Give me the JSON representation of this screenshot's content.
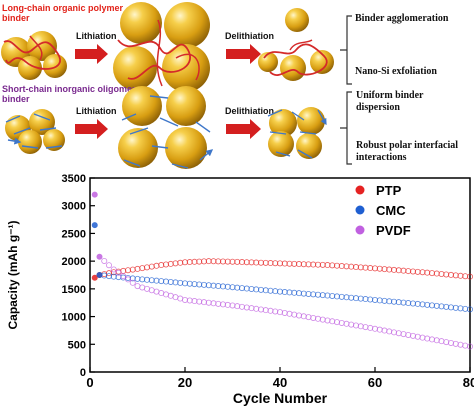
{
  "top_row": {
    "label_line1": "Long-chain organic polymer",
    "label_line2": "binder",
    "step1": "Lithiation",
    "step2": "Delithiation",
    "outcome1": "Binder agglomeration",
    "outcome2": "Nano-Si exfoliation"
  },
  "bottom_row": {
    "label_line1": "Short-chain inorganic oligomer",
    "label_line2": "binder",
    "step1": "Lithiation",
    "step2": "Delithiation",
    "outcome1_line1": "Uniform binder",
    "outcome1_line2": "dispersion",
    "outcome2_line1": "Robust polar interfacial",
    "outcome2_line2": "interactions"
  },
  "colors": {
    "sphere": "#e7b020",
    "polymer_chain": "#d42a2a",
    "oligomer_chain": "#3f77c9",
    "arrow": "#d41f1f",
    "top_label": "#e2231a",
    "bottom_label": "#7a2a8f",
    "ptp": "#e52222",
    "cmc": "#1f5fd1",
    "pvdf": "#c060e0"
  },
  "chart_data": {
    "type": "scatter",
    "xlabel": "Cycle Number",
    "ylabel": "Capacity (mAh g⁻¹)",
    "xlim": [
      0,
      80
    ],
    "ylim": [
      0,
      3500
    ],
    "xticks": [
      0,
      20,
      40,
      60,
      80
    ],
    "yticks": [
      0,
      500,
      1000,
      1500,
      2000,
      2500,
      3000,
      3500
    ],
    "grid": false,
    "legend_position": "top-right",
    "series": [
      {
        "name": "PTP",
        "color": "#e52222",
        "x": [
          1,
          2,
          5,
          10,
          15,
          20,
          25,
          30,
          40,
          50,
          60,
          70,
          80
        ],
        "y": [
          1700,
          1750,
          1800,
          1860,
          1930,
          1980,
          2000,
          1990,
          1960,
          1930,
          1870,
          1800,
          1720
        ]
      },
      {
        "name": "CMC",
        "color": "#1f5fd1",
        "x": [
          1,
          2,
          5,
          10,
          20,
          30,
          40,
          50,
          60,
          70,
          80
        ],
        "y": [
          2650,
          1750,
          1720,
          1680,
          1600,
          1530,
          1450,
          1380,
          1300,
          1220,
          1130
        ]
      },
      {
        "name": "PVDF",
        "color": "#c060e0",
        "x": [
          1,
          2,
          5,
          10,
          20,
          30,
          40,
          50,
          60,
          70,
          80
        ],
        "y": [
          3200,
          2080,
          1850,
          1550,
          1300,
          1200,
          1080,
          930,
          780,
          620,
          460
        ]
      }
    ]
  }
}
